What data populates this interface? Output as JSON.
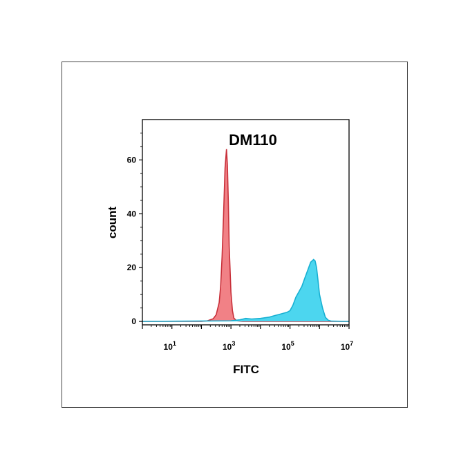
{
  "chart_data": {
    "type": "area",
    "title": "DM110",
    "xlabel": "FITC",
    "ylabel": "count",
    "x_scale": "log",
    "xlim": [
      1,
      10000000
    ],
    "ylim": [
      0,
      75
    ],
    "x_ticks": [
      {
        "value": 10,
        "base": "10",
        "exp": "1"
      },
      {
        "value": 1000,
        "base": "10",
        "exp": "3"
      },
      {
        "value": 100000,
        "base": "10",
        "exp": "5"
      },
      {
        "value": 10000000,
        "base": "10",
        "exp": "7"
      }
    ],
    "y_ticks": [
      0,
      20,
      40,
      60
    ],
    "grid": false,
    "legend": "none",
    "series": [
      {
        "color_fill": "#f07a80",
        "color_line": "#c8303a",
        "x": [
          1,
          100,
          158,
          251,
          316,
          398,
          447,
          501,
          562,
          631,
          708,
          759,
          813,
          871,
          1000,
          1122,
          1259,
          1585,
          2512,
          10000000
        ],
        "y": [
          0,
          0,
          0.2,
          1,
          2.5,
          7,
          13,
          24,
          40,
          57,
          64,
          58,
          45,
          28,
          11,
          4,
          1.2,
          0.2,
          0,
          0
        ]
      },
      {
        "color_fill": "#42d4ee",
        "color_line": "#17b0d2",
        "x": [
          1,
          1000,
          1995,
          3162,
          5012,
          10000,
          19953,
          31623,
          50119,
          79433,
          100000,
          125893,
          158489,
          199526,
          251189,
          316228,
          398107,
          501187,
          630957,
          707946,
          794328,
          891251,
          1000000,
          1258925,
          1584893,
          1995262,
          2511886,
          10000000
        ],
        "y": [
          0,
          0.2,
          0.6,
          1.1,
          0.9,
          1.1,
          1.6,
          2.2,
          2.8,
          3.4,
          4,
          6,
          9,
          11,
          13,
          16,
          19,
          22,
          23,
          22.5,
          20,
          15,
          10,
          5,
          1.5,
          0.4,
          0.1,
          0
        ]
      }
    ]
  }
}
